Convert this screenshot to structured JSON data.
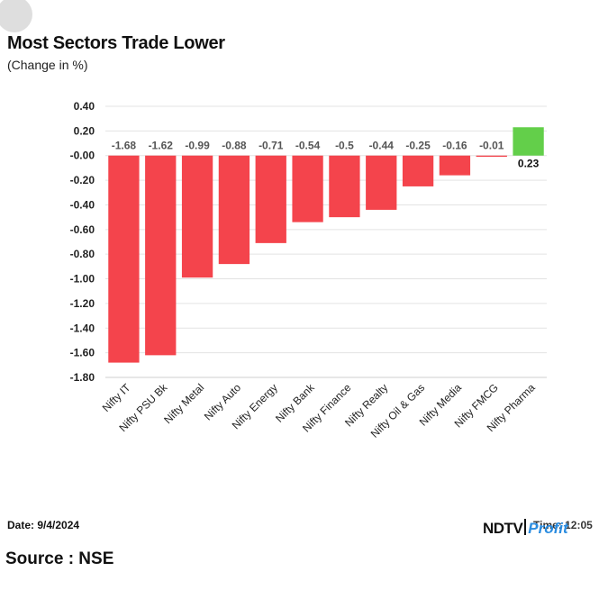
{
  "header": {
    "title": "Most Sectors Trade Lower",
    "subtitle": "(Change in %)"
  },
  "footer": {
    "date": "Date: 9/4/2024",
    "source": "Source : NSE",
    "time": "Time: 12:05",
    "logo_main": "NDTV",
    "logo_accent": "Profit"
  },
  "colors": {
    "negative": "#f4444c",
    "positive": "#63cf4a",
    "grid": "#e3e3e3"
  },
  "chart_data": {
    "type": "bar",
    "title": "Most Sectors Trade Lower",
    "subtitle": "(Change in %)",
    "xlabel": "",
    "ylabel": "",
    "categories": [
      "Nifty IT",
      "Nifty PSU Bk",
      "Nifty Metal",
      "Nifty Auto",
      "Nifty Energy",
      "Nifty Bank",
      "Nifty Finance",
      "Nifty Realty",
      "Nifty Oil & Gas",
      "Nifty Media",
      "Nifty FMCG",
      "Nifty Pharma"
    ],
    "values": [
      -1.68,
      -1.62,
      -0.99,
      -0.88,
      -0.71,
      -0.54,
      -0.5,
      -0.44,
      -0.25,
      -0.16,
      -0.01,
      0.23
    ],
    "value_labels": [
      "-1.68",
      "-1.62",
      "-0.99",
      "-0.88",
      "-0.71",
      "-0.54",
      "-0.5",
      "-0.44",
      "-0.25",
      "-0.16",
      "-0.01",
      "0.23"
    ],
    "ylim": [
      -1.8,
      0.4
    ],
    "yticks": [
      0.4,
      0.2,
      0,
      -0.2,
      -0.4,
      -0.6,
      -0.8,
      -1.0,
      -1.2,
      -1.4,
      -1.6,
      -1.8
    ],
    "ytick_labels": [
      "0.40",
      "0.20",
      "-0.00",
      "-0.20",
      "-0.40",
      "-0.60",
      "-0.80",
      "-1.00",
      "-1.20",
      "-1.40",
      "-1.60",
      "-1.80"
    ],
    "grid": true,
    "legend": "none"
  }
}
